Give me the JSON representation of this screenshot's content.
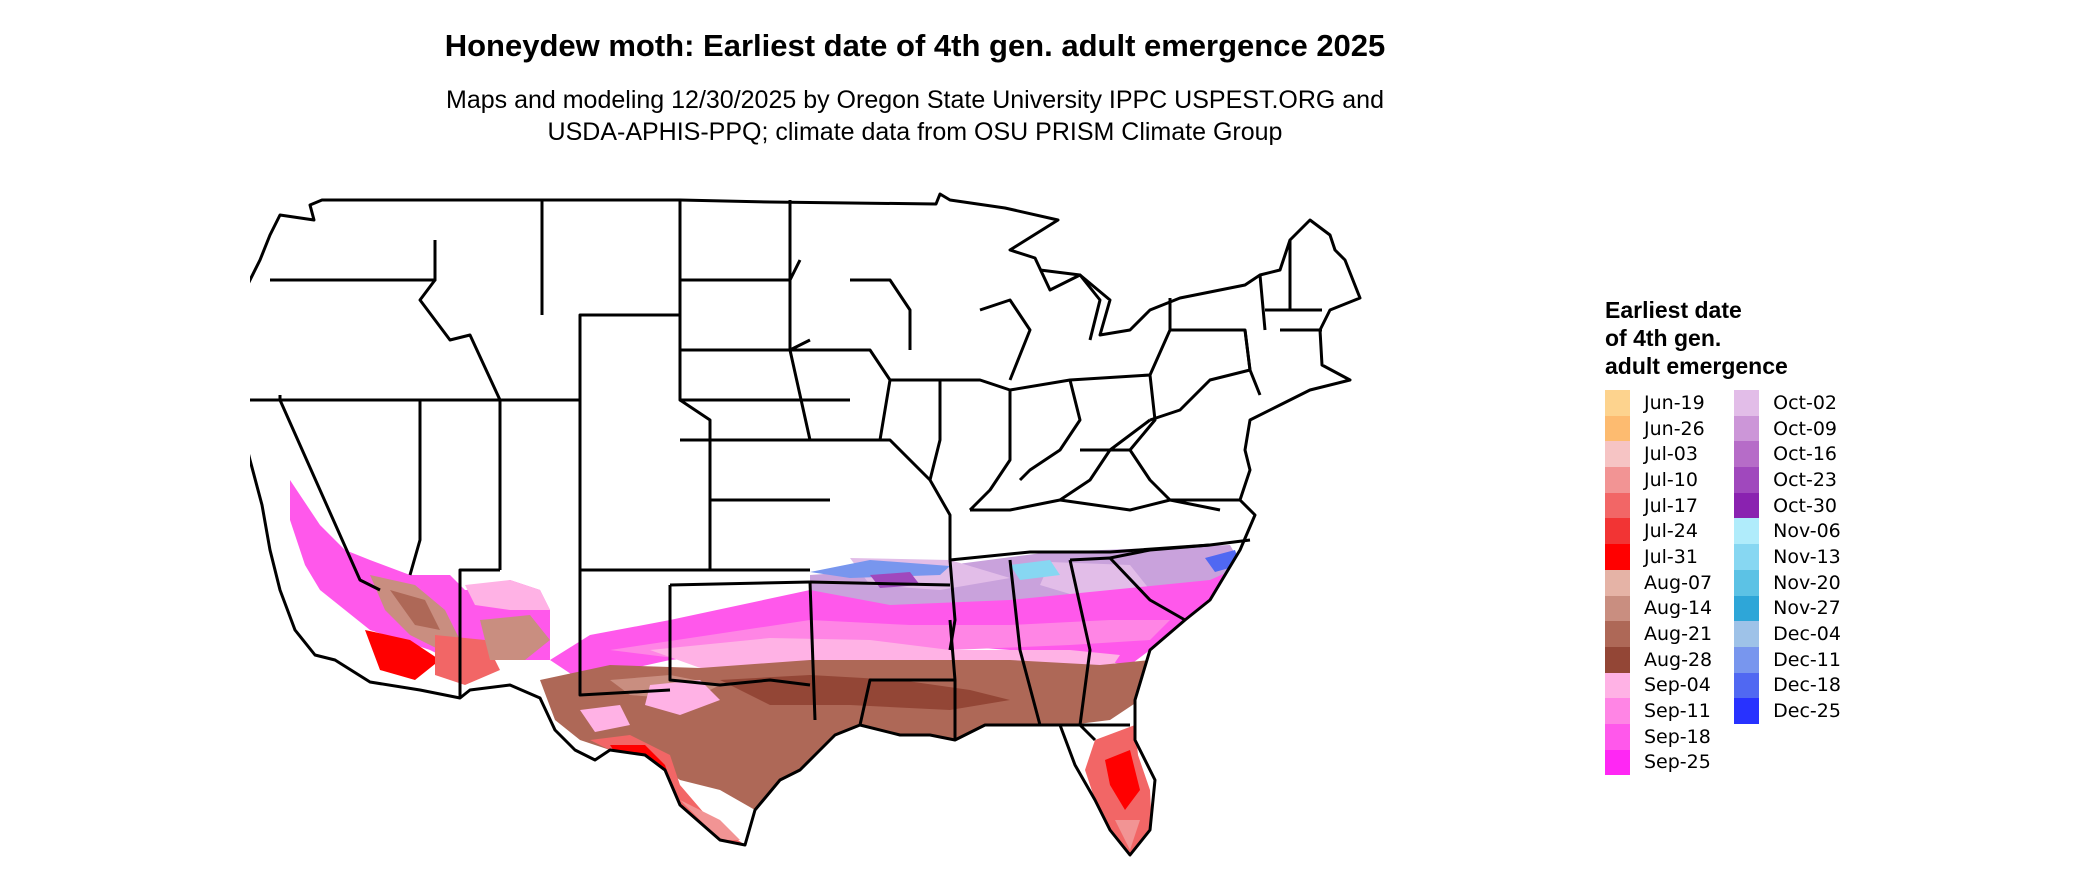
{
  "title": "Honeydew moth: Earliest date of 4th gen. adult emergence 2025",
  "subtitle_lines": [
    "Maps and modeling 12/30/2025 by Oregon State University IPPC USPEST.ORG and",
    "USDA-APHIS-PPQ; climate data from OSU PRISM Climate Group"
  ],
  "legend": {
    "title_lines": [
      "Earliest date",
      "of 4th gen.",
      "adult emergence"
    ],
    "columns": [
      [
        {
          "label": "Jun-19",
          "color": "#fdd38e"
        },
        {
          "label": "Jun-26",
          "color": "#fdbb70"
        },
        {
          "label": "Jul-03",
          "color": "#f6c4c4"
        },
        {
          "label": "Jul-10",
          "color": "#f29494"
        },
        {
          "label": "Jul-17",
          "color": "#f26666"
        },
        {
          "label": "Jul-24",
          "color": "#f23434"
        },
        {
          "label": "Jul-31",
          "color": "#ff0000"
        },
        {
          "label": "Aug-07",
          "color": "#e5b3a6"
        },
        {
          "label": "Aug-14",
          "color": "#c98e80"
        },
        {
          "label": "Aug-21",
          "color": "#ae6857"
        },
        {
          "label": "Aug-28",
          "color": "#934636"
        },
        {
          "label": "Sep-04",
          "color": "#ffb2e5"
        },
        {
          "label": "Sep-11",
          "color": "#ff85e5"
        },
        {
          "label": "Sep-18",
          "color": "#ff58eb"
        },
        {
          "label": "Sep-25",
          "color": "#ff27f4"
        }
      ],
      [
        {
          "label": "Oct-02",
          "color": "#e2bde8"
        },
        {
          "label": "Oct-09",
          "color": "#cc96d8"
        },
        {
          "label": "Oct-16",
          "color": "#b66cc8"
        },
        {
          "label": "Oct-23",
          "color": "#a048bd"
        },
        {
          "label": "Oct-30",
          "color": "#8a22b0"
        },
        {
          "label": "Nov-06",
          "color": "#b0ecfb"
        },
        {
          "label": "Nov-13",
          "color": "#87d7f2"
        },
        {
          "label": "Nov-20",
          "color": "#5cc2e5"
        },
        {
          "label": "Nov-27",
          "color": "#2ea6d8"
        },
        {
          "label": "Dec-04",
          "color": "#9ec2e8"
        },
        {
          "label": "Dec-11",
          "color": "#7896ee"
        },
        {
          "label": "Dec-18",
          "color": "#5068f2"
        },
        {
          "label": "Dec-25",
          "color": "#2832ff"
        }
      ]
    ]
  }
}
